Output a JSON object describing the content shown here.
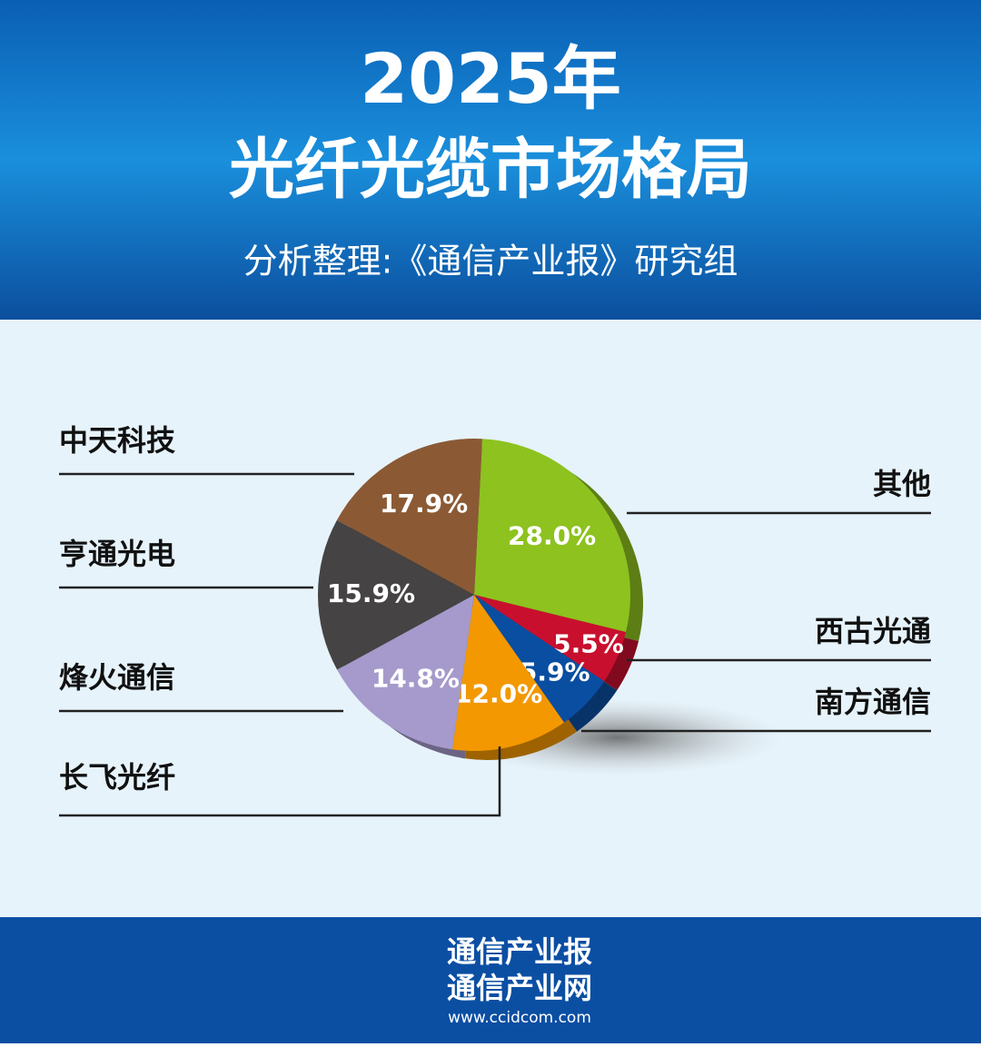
{
  "header": {
    "title_line1": "2025年",
    "title_line2": "光纤光缆市场格局",
    "subtitle": "分析整理:《通信产业报》研究组"
  },
  "chart_data": {
    "type": "pie",
    "categories": [
      "其他",
      "西古光通",
      "南方通信",
      "长飞光纤",
      "烽火通信",
      "亨通光电",
      "中天科技"
    ],
    "values": [
      28.0,
      5.5,
      5.9,
      12.0,
      14.8,
      15.9,
      17.9
    ],
    "value_labels": [
      "28.0%",
      "5.5%",
      "5.9%",
      "12.0%",
      "14.8%",
      "15.9%",
      "17.9%"
    ],
    "colors": [
      "#8dc21f",
      "#c8102e",
      "#0a4ea2",
      "#f39800",
      "#a59acb",
      "#454343",
      "#8b5a35"
    ]
  },
  "footer": {
    "line1": "通信产业报",
    "line2": "通信产业网",
    "url": "www.ccidcom.com"
  }
}
